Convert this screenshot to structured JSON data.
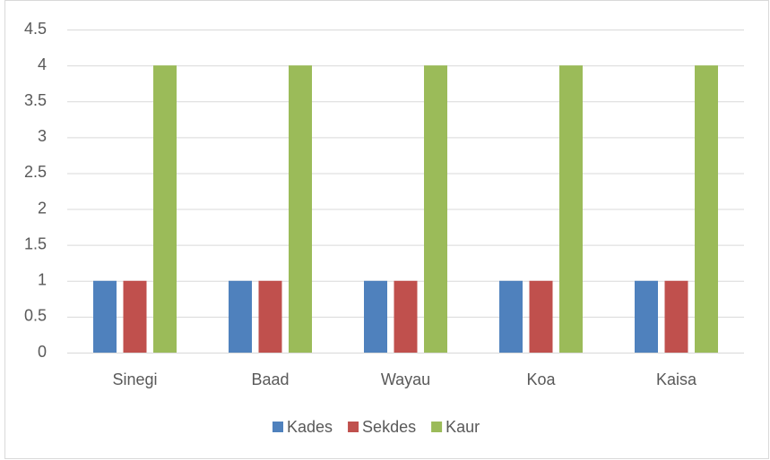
{
  "chart_data": {
    "type": "bar",
    "categories": [
      "Sinegi",
      "Baad",
      "Wayau",
      "Koa",
      "Kaisa"
    ],
    "series": [
      {
        "name": "Kades",
        "color": "#4f81bd",
        "values": [
          1,
          1,
          1,
          1,
          1
        ]
      },
      {
        "name": "Sekdes",
        "color": "#c0504d",
        "values": [
          1,
          1,
          1,
          1,
          1
        ]
      },
      {
        "name": "Kaur",
        "color": "#9bbb59",
        "values": [
          4,
          4,
          4,
          4,
          4
        ]
      }
    ],
    "ylim": [
      0,
      4.5
    ],
    "yticks": [
      0,
      0.5,
      1,
      1.5,
      2,
      2.5,
      3,
      3.5,
      4,
      4.5
    ],
    "grid": true,
    "legend": "bottom"
  }
}
